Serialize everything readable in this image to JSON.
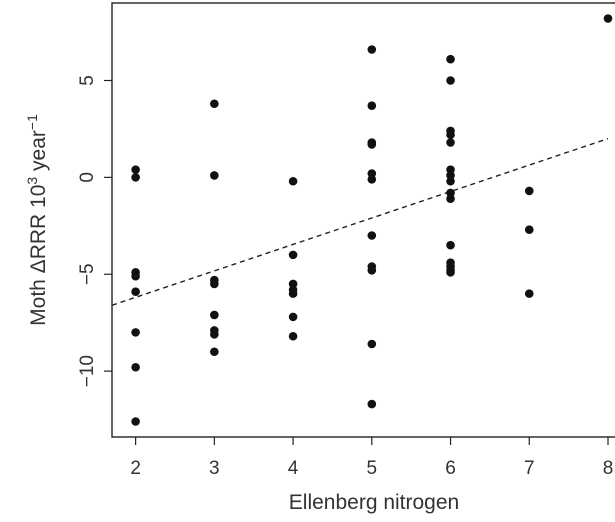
{
  "chart_data": {
    "type": "scatter",
    "xlabel": "Ellenberg nitrogen",
    "ylabel": {
      "prefix": "Moth ",
      "delta": "Δ",
      "mid": "RRR 10",
      "sup1": "3",
      "unit": " year",
      "sup2": "−1"
    },
    "xlim": [
      1.7,
      8.0
    ],
    "ylim": [
      -13.4,
      9.0
    ],
    "xticks": [
      2,
      3,
      4,
      5,
      6,
      7,
      8
    ],
    "yticks": [
      {
        "value": 5,
        "label": "5"
      },
      {
        "value": 0,
        "label": "0"
      },
      {
        "value": -5,
        "label": "−5"
      },
      {
        "value": -10,
        "label": "−10"
      }
    ],
    "grid": false,
    "legend": "none",
    "trend_line": {
      "style": "dashed",
      "x": [
        1.7,
        8.0
      ],
      "y": [
        -6.6,
        2.0
      ]
    },
    "points": [
      {
        "x": 2,
        "y": 0.4
      },
      {
        "x": 2,
        "y": 0.0
      },
      {
        "x": 2,
        "y": -4.9
      },
      {
        "x": 2,
        "y": -5.1
      },
      {
        "x": 2,
        "y": -5.9
      },
      {
        "x": 2,
        "y": -8.0
      },
      {
        "x": 2,
        "y": -9.8
      },
      {
        "x": 2,
        "y": -12.6
      },
      {
        "x": 3,
        "y": 3.8
      },
      {
        "x": 3,
        "y": 0.1
      },
      {
        "x": 3,
        "y": -5.3
      },
      {
        "x": 3,
        "y": -5.5
      },
      {
        "x": 3,
        "y": -7.1
      },
      {
        "x": 3,
        "y": -7.9
      },
      {
        "x": 3,
        "y": -8.1
      },
      {
        "x": 3,
        "y": -9.0
      },
      {
        "x": 4,
        "y": -0.2
      },
      {
        "x": 4,
        "y": -4.0
      },
      {
        "x": 4,
        "y": -5.5
      },
      {
        "x": 4,
        "y": -5.8
      },
      {
        "x": 4,
        "y": -6.0
      },
      {
        "x": 4,
        "y": -7.2
      },
      {
        "x": 4,
        "y": -8.2
      },
      {
        "x": 5,
        "y": 6.6
      },
      {
        "x": 5,
        "y": 3.7
      },
      {
        "x": 5,
        "y": 1.8
      },
      {
        "x": 5,
        "y": 1.7
      },
      {
        "x": 5,
        "y": 0.2
      },
      {
        "x": 5,
        "y": -0.1
      },
      {
        "x": 5,
        "y": -3.0
      },
      {
        "x": 5,
        "y": -4.6
      },
      {
        "x": 5,
        "y": -4.8
      },
      {
        "x": 5,
        "y": -8.6
      },
      {
        "x": 5,
        "y": -11.7
      },
      {
        "x": 6,
        "y": 6.1
      },
      {
        "x": 6,
        "y": 5.0
      },
      {
        "x": 6,
        "y": 2.4
      },
      {
        "x": 6,
        "y": 2.2
      },
      {
        "x": 6,
        "y": 1.8
      },
      {
        "x": 6,
        "y": 0.4
      },
      {
        "x": 6,
        "y": 0.1
      },
      {
        "x": 6,
        "y": -0.2
      },
      {
        "x": 6,
        "y": -0.8
      },
      {
        "x": 6,
        "y": -1.1
      },
      {
        "x": 6,
        "y": -3.5
      },
      {
        "x": 6,
        "y": -4.4
      },
      {
        "x": 6,
        "y": -4.6
      },
      {
        "x": 6,
        "y": -4.8
      },
      {
        "x": 6,
        "y": -4.9
      },
      {
        "x": 7,
        "y": -0.7
      },
      {
        "x": 7,
        "y": -2.7
      },
      {
        "x": 7,
        "y": -6.0
      },
      {
        "x": 8,
        "y": 8.2
      }
    ]
  }
}
